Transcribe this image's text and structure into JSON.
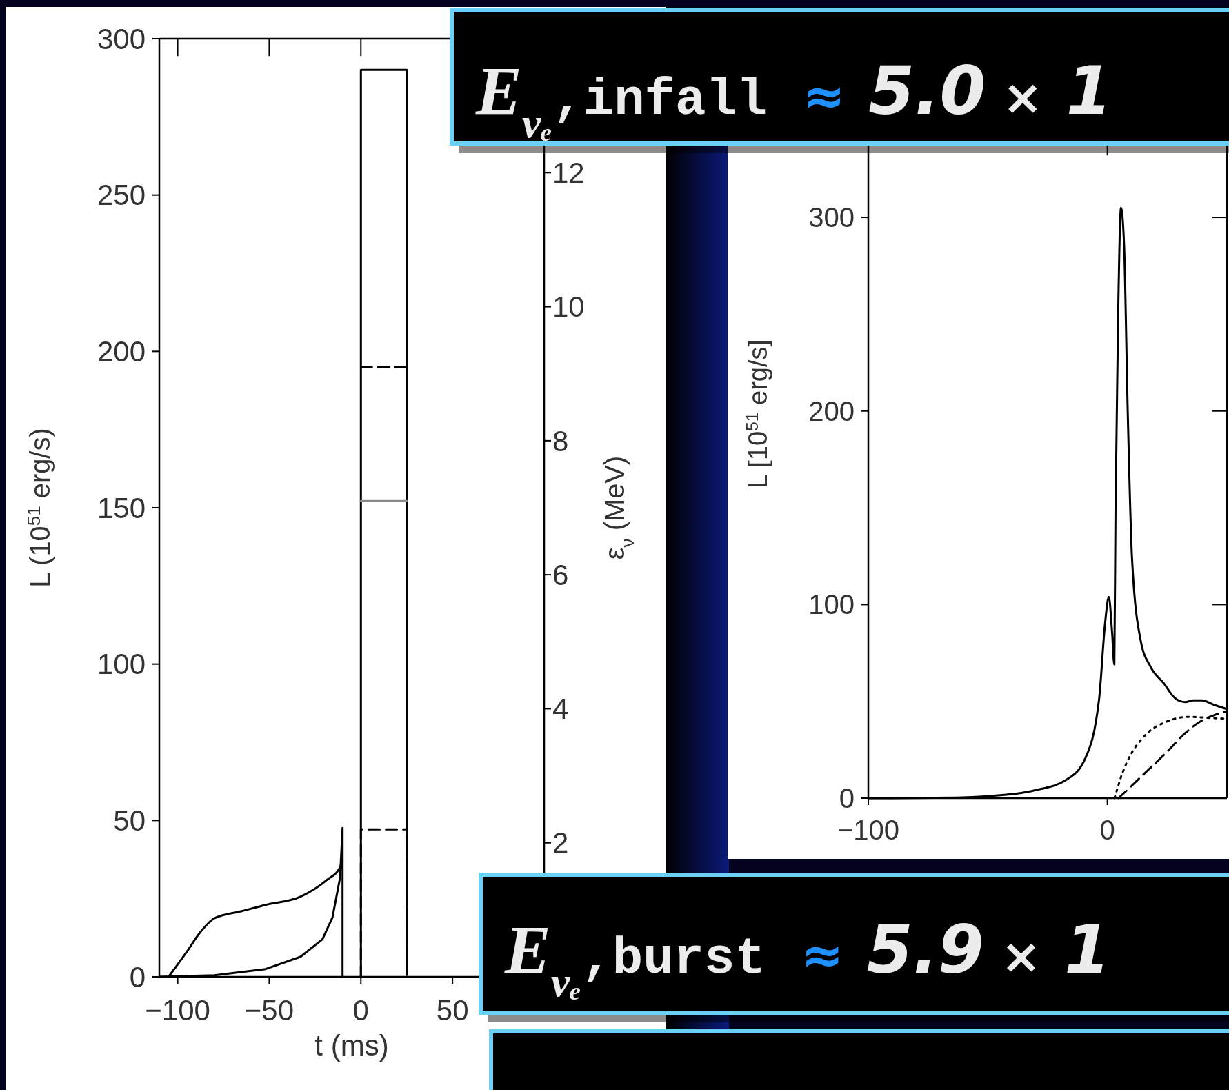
{
  "chart_data": [
    {
      "type": "line",
      "xlabel": "t (ms)",
      "ylabel": "L (10$^{51}$ erg/s)",
      "y2label": "ε$_{ν}$ (MeV)",
      "xlim": [
        -110,
        100
      ],
      "xticks": [
        -100,
        -50,
        0,
        50
      ],
      "ylim": [
        0,
        300
      ],
      "yticks": [
        0,
        50,
        100,
        150,
        200,
        250,
        300
      ],
      "y2lim": [
        0,
        14
      ],
      "y2ticks": [
        2,
        4,
        6,
        8,
        10,
        12
      ],
      "series": [
        {
          "color": "#000000",
          "x": [
            -105,
            -95,
            -88,
            -80,
            -65,
            -52,
            -33,
            -18.5,
            -11.4,
            -10
          ],
          "values": [
            0,
            8,
            14,
            18.7,
            21,
            23,
            25.6,
            31,
            35,
            37
          ]
        },
        {
          "color": "#000000",
          "x": [
            -110,
            -80,
            -52,
            -33,
            -21,
            -15.5,
            -11.4,
            -10,
            -10
          ],
          "values": [
            0,
            0.5,
            2.5,
            6.4,
            12,
            19,
            31.6,
            47.6,
            0
          ]
        },
        {
          "color": "#000000",
          "x": [
            0,
            0,
            25,
            25
          ],
          "values": [
            0,
            290,
            290,
            3
          ]
        },
        {
          "color": "#000000",
          "axis": "y2",
          "line_style": "dashed",
          "x": [
            0,
            25
          ],
          "values": [
            9.1,
            9.1
          ]
        },
        {
          "color": "#8a8a8a",
          "axis": "y2",
          "x": [
            0,
            25
          ],
          "values": [
            7.1,
            7.1
          ]
        },
        {
          "color": "#000000",
          "axis": "y2",
          "line_style": "dashed",
          "x": [
            0,
            0,
            25,
            25
          ],
          "values": [
            0,
            2.2,
            2.2,
            0
          ]
        }
      ]
    },
    {
      "type": "line",
      "ylabel": "L [10$^{51}$ erg/s]",
      "xlim": [
        -100,
        50
      ],
      "xticks": [
        -100,
        0
      ],
      "ylim": [
        0,
        341
      ],
      "yticks": [
        0,
        100,
        200,
        300
      ],
      "series": [
        {
          "color": "#000000",
          "x": [
            -100,
            -63,
            -50,
            -30.5,
            -17,
            -9.2,
            -3.4,
            -1,
            0.6,
            2,
            2.9,
            3.4,
            4.5,
            5.7,
            7,
            8.5,
            10.3,
            14,
            18,
            23.8,
            28,
            32.5,
            36,
            39.4,
            45,
            50
          ],
          "values": [
            0,
            0.3,
            1,
            4,
            9.6,
            20.7,
            52,
            90,
            104,
            85,
            69,
            148,
            250,
            305,
            285,
            200,
            124,
            81,
            68,
            59,
            52,
            49.6,
            50.5,
            50.5,
            48,
            46
          ]
        },
        {
          "color": "#000000",
          "line_style": "dotted",
          "x": [
            3,
            6.3,
            10,
            14,
            18,
            23.8,
            33.7,
            42,
            50
          ],
          "values": [
            0,
            13,
            23,
            30,
            35,
            39,
            42,
            41.5,
            41
          ]
        },
        {
          "color": "#000000",
          "line_style": "dashed",
          "x": [
            4.6,
            9,
            14,
            20,
            25.8,
            32,
            39.4,
            45,
            50
          ],
          "values": [
            0,
            5,
            11,
            18,
            25,
            33,
            40,
            43,
            45
          ]
        }
      ]
    },
    {
      "type": "other",
      "annotations": [
        "E$_{νₑ}$,infall ≈ 5.0 × 1",
        "E$_{νₑ}$,burst ≈ 5.9 × 1"
      ]
    }
  ]
}
